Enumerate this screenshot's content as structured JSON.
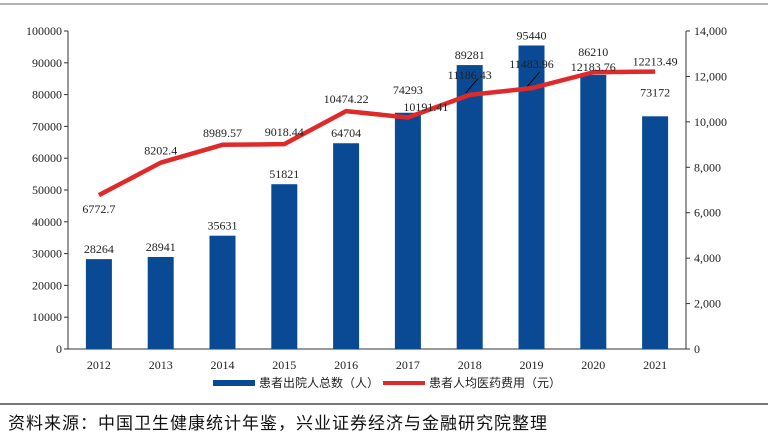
{
  "chart_data": {
    "type": "bar+line",
    "categories": [
      "2012",
      "2013",
      "2014",
      "2015",
      "2016",
      "2017",
      "2018",
      "2019",
      "2020",
      "2021"
    ],
    "series": [
      {
        "name": "患者出院人总数（人）",
        "type": "bar",
        "axis": "left",
        "color": "#0a4a94",
        "values": [
          28264,
          28941,
          35631,
          51821,
          64704,
          74293,
          89281,
          95440,
          86210,
          73172
        ],
        "labels": [
          "28264",
          "28941",
          "35631",
          "51821",
          "64704",
          "74293",
          "89281",
          "95440",
          "86210",
          "73172"
        ]
      },
      {
        "name": "患者人均医药费用（元）",
        "type": "line",
        "axis": "right",
        "color": "#e02a2a",
        "values": [
          6772.7,
          8202.4,
          8989.57,
          9018.44,
          10474.22,
          10191.41,
          11186.43,
          11483.96,
          12183.76,
          12213.49
        ],
        "labels": [
          "6772.7",
          "8202.4",
          "8989.57",
          "9018.44",
          "10474.22",
          "10191.41",
          "11186.43",
          "11483.96",
          "12183.76",
          "12213.49"
        ]
      }
    ],
    "y_left": {
      "range": [
        0,
        100000
      ],
      "ticks": [
        "0",
        "10000",
        "20000",
        "30000",
        "40000",
        "50000",
        "60000",
        "70000",
        "80000",
        "90000",
        "100000"
      ]
    },
    "y_right": {
      "range": [
        0,
        14000
      ],
      "ticks": [
        "0",
        "2,000",
        "4,000",
        "6,000",
        "8,000",
        "10,000",
        "12,000",
        "14,000"
      ]
    },
    "legend_position": "bottom"
  },
  "source": "资料来源：中国卫生健康统计年鉴，兴业证券经济与金融研究院整理"
}
